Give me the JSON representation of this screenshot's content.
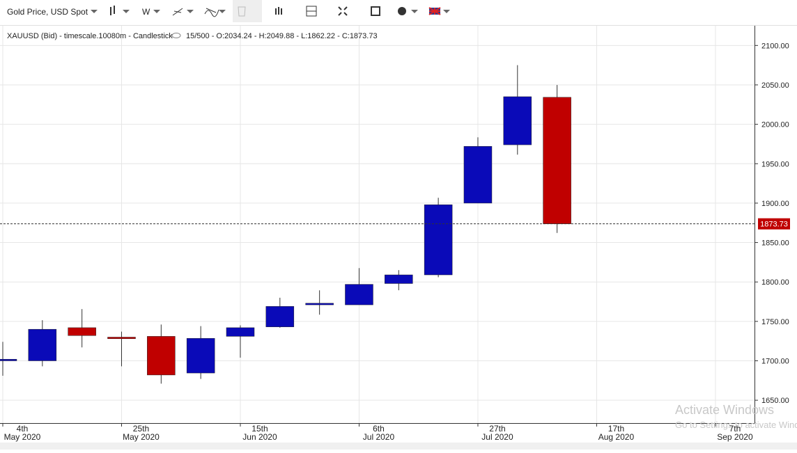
{
  "toolbar": {
    "symbol": "Gold Price, USD Spot",
    "interval": "W"
  },
  "watermark": {
    "title": "Activate Windows",
    "text": "Go to Settings to activate Windows."
  },
  "chart_data": {
    "type": "candlestick",
    "info": "XAUUSD (Bid) - timescale.10080m - Candlestick",
    "ohlc_info": "15/500 - O:2034.24 - H:2049.88 - L:1862.22 - C:1873.73",
    "categories": [
      [
        "4th",
        "May 2020"
      ],
      null,
      null,
      [
        "25th",
        "May 2020"
      ],
      null,
      null,
      [
        "15th",
        "Jun 2020"
      ],
      null,
      null,
      [
        "6th",
        "Jul 2020"
      ],
      null,
      null,
      [
        "27th",
        "Jul 2020"
      ],
      null,
      null,
      [
        "17th",
        "Aug 2020"
      ],
      null,
      null,
      [
        "7th",
        "Sep 2020"
      ]
    ],
    "open": [
      1700,
      1700,
      1742,
      1730,
      1731,
      1684.5,
      1731,
      1743,
      1771,
      1771,
      1798,
      1809,
      1900,
      1974,
      2034.24,
      null,
      null,
      null,
      null
    ],
    "high": [
      1724,
      1751.5,
      1765.6,
      1737,
      1746,
      1744,
      1745,
      1780,
      1789.4,
      1817.6,
      1815,
      1906.8,
      1983.5,
      2075,
      2049.88,
      null,
      null,
      null,
      null
    ],
    "low": [
      1681,
      1693,
      1717,
      1693,
      1671,
      1677,
      1704,
      1742,
      1758.5,
      1771,
      1789.5,
      1806,
      1900,
      1961.5,
      1862.22,
      null,
      null,
      null,
      null
    ],
    "close": [
      1702,
      1740,
      1732,
      1728,
      1682,
      1728.5,
      1742,
      1769,
      1773,
      1797,
      1809,
      1898,
      1972,
      2035,
      1873.73,
      null,
      null,
      null,
      null
    ],
    "up_color": "#0a0ab8",
    "down_color": "#c00000",
    "last_price": {
      "value": 1873.73,
      "label": "1873.73"
    },
    "ylim": [
      1621,
      2125
    ],
    "yticks": [
      {
        "value": 1650,
        "label": "1650.00"
      },
      {
        "value": 1700,
        "label": "1700.00"
      },
      {
        "value": 1750,
        "label": "1750.00"
      },
      {
        "value": 1800,
        "label": "1800.00"
      },
      {
        "value": 1850,
        "label": "1850.00"
      },
      {
        "value": 1900,
        "label": "1900.00"
      },
      {
        "value": 1950,
        "label": "1950.00"
      },
      {
        "value": 2000,
        "label": "2000.00"
      },
      {
        "value": 2050,
        "label": "2050.00"
      },
      {
        "value": 2100,
        "label": "2100.00"
      }
    ],
    "grid": true
  }
}
